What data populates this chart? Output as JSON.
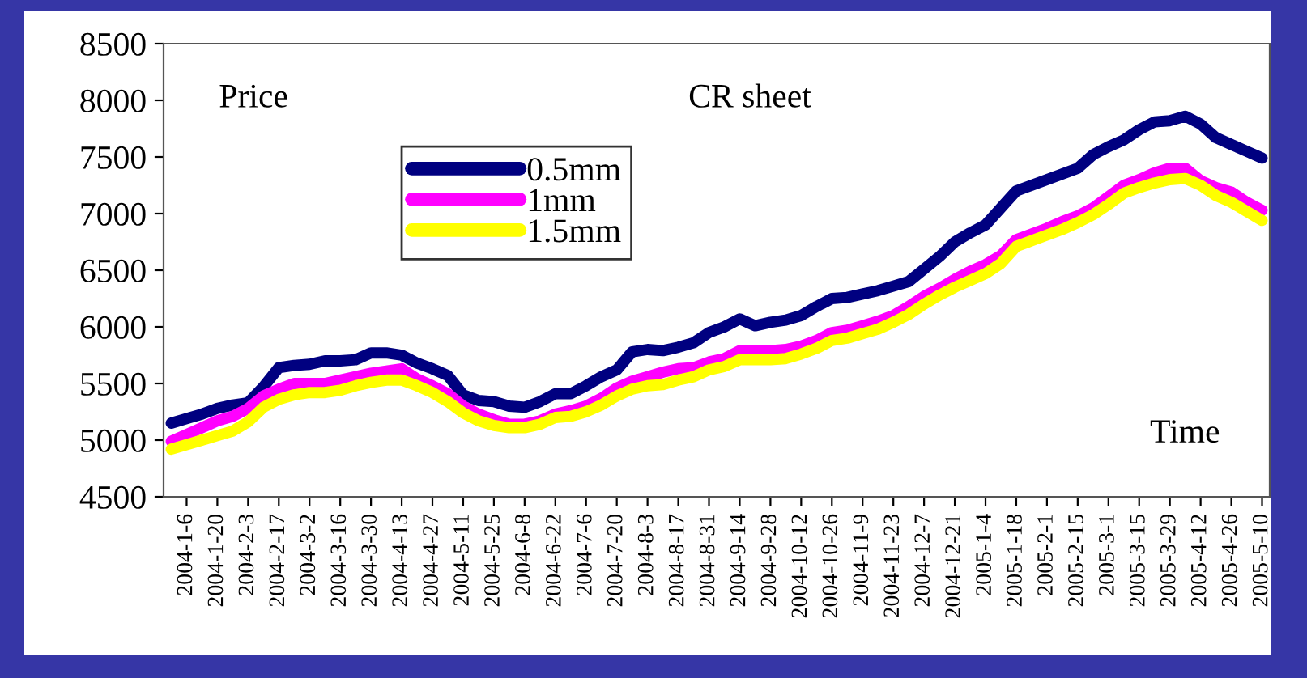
{
  "chart_data": {
    "type": "line",
    "title": "CR sheet",
    "ylabel": "Price",
    "xlabel": "Time",
    "categories": [
      null,
      "2004-1-6",
      null,
      "2004-1-20",
      null,
      "2004-2-3",
      null,
      "2004-2-17",
      null,
      "2004-3-2",
      null,
      "2004-3-16",
      null,
      "2004-3-30",
      null,
      "2004-4-13",
      null,
      "2004-4-27",
      null,
      "2004-5-11",
      null,
      "2004-5-25",
      null,
      "2004-6-8",
      null,
      "2004-6-22",
      null,
      "2004-7-6",
      null,
      "2004-7-20",
      null,
      "2004-8-3",
      null,
      "2004-8-17",
      null,
      "2004-8-31",
      null,
      "2004-9-14",
      null,
      "2004-9-28",
      null,
      "2004-10-12",
      null,
      "2004-10-26",
      null,
      "2004-11-9",
      null,
      "2004-11-23",
      null,
      "2004-12-7",
      null,
      "2004-12-21",
      null,
      "2005-1-4",
      null,
      "2005-1-18",
      null,
      "2005-2-1",
      null,
      "2005-2-15",
      null,
      "2005-3-1",
      null,
      "2005-3-15",
      null,
      "2005-3-29",
      null,
      "2005-4-12",
      null,
      "2005-4-26",
      null,
      "2005-5-10"
    ],
    "series": [
      {
        "name": "0.5mm",
        "color": "#000080",
        "values": [
          5150,
          5190,
          5230,
          5280,
          5310,
          5330,
          5470,
          5640,
          5660,
          5670,
          5700,
          5700,
          5710,
          5770,
          5770,
          5750,
          5680,
          5630,
          5570,
          5400,
          5350,
          5340,
          5300,
          5290,
          5340,
          5410,
          5410,
          5480,
          5560,
          5620,
          5780,
          5800,
          5790,
          5820,
          5860,
          5950,
          6000,
          6070,
          6010,
          6040,
          6060,
          6100,
          6180,
          6250,
          6260,
          6290,
          6320,
          6360,
          6400,
          6510,
          6620,
          6750,
          6830,
          6900,
          7050,
          7200,
          7250,
          7300,
          7350,
          7400,
          7520,
          7590,
          7650,
          7740,
          7810,
          7820,
          7860,
          7790,
          7670,
          7610,
          7550,
          7490
        ]
      },
      {
        "name": "1mm",
        "color": "#ff00ff",
        "values": [
          4990,
          5050,
          5110,
          5170,
          5210,
          5280,
          5390,
          5450,
          5500,
          5500,
          5500,
          5530,
          5560,
          5590,
          5610,
          5630,
          5540,
          5480,
          5410,
          5300,
          5230,
          5180,
          5140,
          5140,
          5170,
          5230,
          5260,
          5300,
          5370,
          5460,
          5520,
          5560,
          5600,
          5630,
          5640,
          5690,
          5720,
          5790,
          5790,
          5790,
          5800,
          5830,
          5880,
          5950,
          5970,
          6010,
          6050,
          6100,
          6180,
          6270,
          6340,
          6420,
          6490,
          6550,
          6630,
          6770,
          6820,
          6870,
          6930,
          6980,
          7050,
          7150,
          7250,
          7300,
          7360,
          7400,
          7400,
          7290,
          7230,
          7190,
          7100,
          7030
        ]
      },
      {
        "name": "1.5mm",
        "color": "#ffff00",
        "values": [
          4920,
          4960,
          5000,
          5040,
          5080,
          5160,
          5290,
          5360,
          5400,
          5420,
          5420,
          5440,
          5480,
          5510,
          5530,
          5530,
          5480,
          5420,
          5340,
          5240,
          5170,
          5130,
          5110,
          5110,
          5140,
          5200,
          5210,
          5250,
          5310,
          5390,
          5450,
          5480,
          5490,
          5530,
          5560,
          5620,
          5650,
          5710,
          5710,
          5710,
          5720,
          5760,
          5810,
          5880,
          5900,
          5940,
          5980,
          6040,
          6110,
          6200,
          6280,
          6350,
          6410,
          6470,
          6560,
          6710,
          6760,
          6810,
          6860,
          6920,
          6990,
          7080,
          7180,
          7230,
          7270,
          7300,
          7310,
          7250,
          7160,
          7100,
          7020,
          6940
        ]
      }
    ],
    "ylim": [
      4500,
      8500
    ],
    "yticks": [
      4500,
      5000,
      5500,
      6000,
      6500,
      7000,
      7500,
      8000,
      8500
    ],
    "legend": "top left",
    "grid": false,
    "marker": "none",
    "line_style": "solid"
  }
}
